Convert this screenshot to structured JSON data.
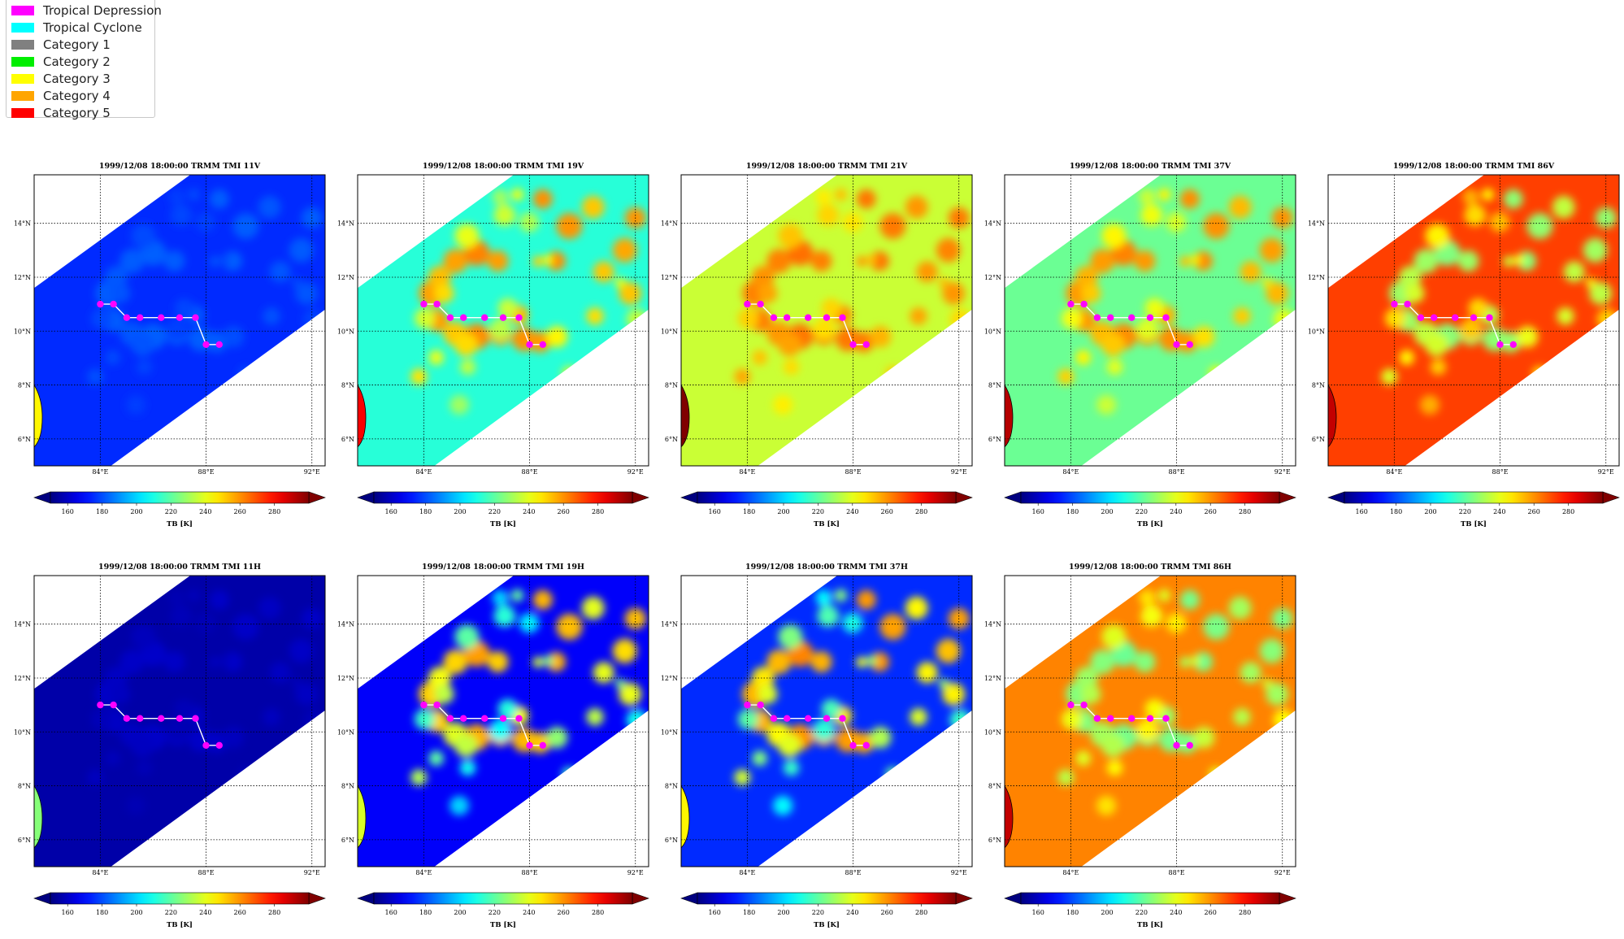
{
  "legend": {
    "items": [
      {
        "label": "Tropical Depression",
        "color": "#ff00ff"
      },
      {
        "label": "Tropical Cyclone",
        "color": "#00ffff"
      },
      {
        "label": "Category 1",
        "color": "#808080"
      },
      {
        "label": "Category 2",
        "color": "#00ee00"
      },
      {
        "label": "Category 3",
        "color": "#ffff00"
      },
      {
        "label": "Category 4",
        "color": "#ffa500"
      },
      {
        "label": "Category 5",
        "color": "#ff0000"
      }
    ]
  },
  "chart_data": {
    "type": "heatmap",
    "colormap": "jet",
    "map_extent": {
      "lon": [
        81.5,
        92.5
      ],
      "lat": [
        5,
        15.8
      ]
    },
    "lon_ticks": [
      84,
      88,
      92
    ],
    "lon_tick_labels": [
      "84°E",
      "88°E",
      "92°E"
    ],
    "lat_ticks": [
      6,
      8,
      10,
      12,
      14
    ],
    "lat_tick_labels": [
      "6°N",
      "8°N",
      "10°N",
      "12°N",
      "14°N"
    ],
    "colorbar": {
      "range": [
        150,
        300
      ],
      "ticks": [
        160,
        180,
        200,
        220,
        240,
        260,
        280
      ],
      "tick_labels": [
        "160",
        "180",
        "200",
        "220",
        "240",
        "260",
        "280"
      ],
      "label": "TB [K]",
      "extend": "both"
    },
    "track": {
      "lon": [
        84.0,
        84.5,
        85.0,
        85.5,
        86.3,
        87.0,
        87.6,
        88.0,
        88.5
      ],
      "lat": [
        11.0,
        11.0,
        10.5,
        10.5,
        10.5,
        10.5,
        10.5,
        9.5,
        9.5
      ],
      "category": "Tropical Depression",
      "color": "#ff00ff"
    },
    "panels": [
      {
        "title": "1999/12/08 18:00:00  TRMM TMI 11V",
        "channel": "11V",
        "bg_tb": 175,
        "conv_tb": 188,
        "conv_strength": 0.6,
        "conv_kind": "warm"
      },
      {
        "title": "1999/12/08 18:00:00  TRMM TMI 19V",
        "channel": "19V",
        "bg_tb": 212,
        "conv_tb": 262,
        "conv_strength": 1.0,
        "conv_kind": "warm"
      },
      {
        "title": "1999/12/08 18:00:00  TRMM TMI 21V",
        "channel": "21V",
        "bg_tb": 236,
        "conv_tb": 268,
        "conv_strength": 0.9,
        "conv_kind": "warm"
      },
      {
        "title": "1999/12/08 18:00:00  TRMM TMI 37V",
        "channel": "37V",
        "bg_tb": 222,
        "conv_tb": 262,
        "conv_strength": 1.0,
        "conv_kind": "warm"
      },
      {
        "title": "1999/12/08 18:00:00  TRMM TMI 86V",
        "channel": "86V",
        "bg_tb": 272,
        "conv_tb": 205,
        "conv_strength": 0.7,
        "conv_kind": "cold"
      },
      {
        "title": "1999/12/08 18:00:00  TRMM TMI 11H",
        "channel": "11H",
        "bg_tb": 156,
        "conv_tb": 172,
        "conv_strength": 0.3,
        "conv_kind": "warm"
      },
      {
        "title": "1999/12/08 18:00:00  TRMM TMI 19H",
        "channel": "19H",
        "bg_tb": 168,
        "conv_tb": 258,
        "conv_strength": 1.0,
        "conv_kind": "warm"
      },
      {
        "title": "1999/12/08 18:00:00  TRMM TMI 37H",
        "channel": "37H",
        "bg_tb": 175,
        "conv_tb": 262,
        "conv_strength": 1.0,
        "conv_kind": "warm"
      },
      {
        "title": "1999/12/08 18:00:00  TRMM TMI 86H",
        "channel": "86H",
        "bg_tb": 262,
        "conv_tb": 205,
        "conv_strength": 0.7,
        "conv_kind": "cold"
      }
    ]
  }
}
